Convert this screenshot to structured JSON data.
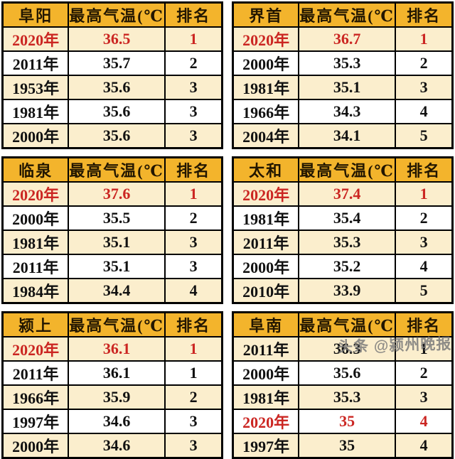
{
  "colors": {
    "header_bg": "#F3B42C",
    "header_text": "#221600",
    "row_cream": "#FBEECD",
    "row_white": "#FFFFFF",
    "highlight_red": "#CB2622",
    "body_text": "#111111",
    "border": "#000000",
    "watermark_gray": "#7D7D7D"
  },
  "watermark": {
    "text": "头条 @颍州晚报"
  },
  "chart_data": [
    {
      "type": "table",
      "title": "阜阳",
      "columns": [
        "阜阳",
        "最高气温(℃)",
        "排名"
      ],
      "rows": [
        {
          "year": "2020年",
          "temp": 36.5,
          "rank": 1,
          "highlight": true
        },
        {
          "year": "2011年",
          "temp": 35.7,
          "rank": 2,
          "highlight": false
        },
        {
          "year": "1953年",
          "temp": 35.6,
          "rank": 3,
          "highlight": false
        },
        {
          "year": "1981年",
          "temp": 35.6,
          "rank": 3,
          "highlight": false
        },
        {
          "year": "2000年",
          "temp": 35.6,
          "rank": 3,
          "highlight": false
        }
      ]
    },
    {
      "type": "table",
      "title": "界首",
      "columns": [
        "界首",
        "最高气温(℃)",
        "排名"
      ],
      "rows": [
        {
          "year": "2020年",
          "temp": 36.7,
          "rank": 1,
          "highlight": true
        },
        {
          "year": "2000年",
          "temp": 35.3,
          "rank": 2,
          "highlight": false
        },
        {
          "year": "1981年",
          "temp": 35.1,
          "rank": 3,
          "highlight": false
        },
        {
          "year": "1966年",
          "temp": 34.3,
          "rank": 4,
          "highlight": false
        },
        {
          "year": "2004年",
          "temp": 34.1,
          "rank": 5,
          "highlight": false
        }
      ]
    },
    {
      "type": "table",
      "title": "临泉",
      "columns": [
        "临泉",
        "最高气温(℃)",
        "排名"
      ],
      "rows": [
        {
          "year": "2020年",
          "temp": 37.6,
          "rank": 1,
          "highlight": true
        },
        {
          "year": "2000年",
          "temp": 35.5,
          "rank": 2,
          "highlight": false
        },
        {
          "year": "1981年",
          "temp": 35.1,
          "rank": 3,
          "highlight": false
        },
        {
          "year": "2011年",
          "temp": 35.1,
          "rank": 3,
          "highlight": false
        },
        {
          "year": "1984年",
          "temp": 34.4,
          "rank": 4,
          "highlight": false
        }
      ]
    },
    {
      "type": "table",
      "title": "太和",
      "columns": [
        "太和",
        "最高气温(℃)",
        "排名"
      ],
      "rows": [
        {
          "year": "2020年",
          "temp": 37.4,
          "rank": 1,
          "highlight": true
        },
        {
          "year": "1981年",
          "temp": 35.4,
          "rank": 2,
          "highlight": false
        },
        {
          "year": "2011年",
          "temp": 35.3,
          "rank": 3,
          "highlight": false
        },
        {
          "year": "2000年",
          "temp": 35.2,
          "rank": 4,
          "highlight": false
        },
        {
          "year": "2010年",
          "temp": 33.9,
          "rank": 5,
          "highlight": false
        }
      ]
    },
    {
      "type": "table",
      "title": "颍上",
      "columns": [
        "颍上",
        "最高气温(℃)",
        "排名"
      ],
      "rows": [
        {
          "year": "2020年",
          "temp": 36.1,
          "rank": 1,
          "highlight": true
        },
        {
          "year": "2011年",
          "temp": 36.1,
          "rank": 1,
          "highlight": false
        },
        {
          "year": "1966年",
          "temp": 35.9,
          "rank": 2,
          "highlight": false
        },
        {
          "year": "1997年",
          "temp": 34.6,
          "rank": 3,
          "highlight": false
        },
        {
          "year": "2000年",
          "temp": 34.6,
          "rank": 3,
          "highlight": false
        }
      ]
    },
    {
      "type": "table",
      "title": "阜南",
      "columns": [
        "阜南",
        "最高气温(℃)",
        "排名"
      ],
      "rows": [
        {
          "year": "2011年",
          "temp": 36.3,
          "rank": 1,
          "highlight": false
        },
        {
          "year": "2000年",
          "temp": 35.6,
          "rank": 2,
          "highlight": false
        },
        {
          "year": "1981年",
          "temp": 35.3,
          "rank": 3,
          "highlight": false
        },
        {
          "year": "2020年",
          "temp": 35,
          "rank": 4,
          "highlight": true
        },
        {
          "year": "1997年",
          "temp": 35,
          "rank": 4,
          "highlight": false
        }
      ]
    }
  ]
}
